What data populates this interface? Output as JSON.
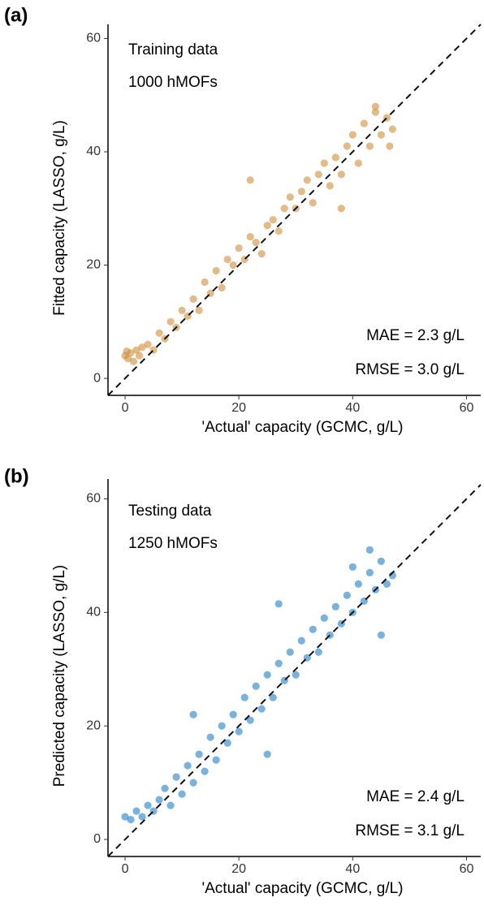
{
  "chart_data": [
    {
      "type": "scatter",
      "panel_label": "(a)",
      "x_label": "'Actual' capacity (GCMC, g/L)",
      "y_label": "Fitted capacity (LASSO, g/L)",
      "xlim": [
        -3,
        62.5
      ],
      "ylim": [
        -3,
        62.5
      ],
      "xticks": [
        0,
        20,
        40,
        60
      ],
      "yticks": [
        0,
        20,
        40,
        60
      ],
      "identity_line": true,
      "series": [
        {
          "name": "Training data",
          "color": "#cf8d3a",
          "x": [
            0,
            0.5,
            1,
            1.5,
            2,
            0.3,
            2.5,
            3,
            4,
            5,
            6,
            7,
            8,
            9,
            10,
            11,
            12,
            13,
            14,
            15,
            16,
            17,
            18,
            19,
            20,
            21,
            22,
            23,
            24,
            25,
            26,
            27,
            28,
            29,
            30,
            31,
            32,
            33,
            34,
            35,
            36,
            37,
            38,
            39,
            40,
            41,
            42,
            43,
            44,
            45,
            46,
            47,
            46.5,
            22,
            38,
            44
          ],
          "values": [
            4,
            3.5,
            4.5,
            3,
            5,
            4.8,
            4,
            5.5,
            6,
            5,
            8,
            7,
            10,
            9,
            12,
            11,
            14,
            12,
            17,
            15,
            19,
            16,
            21,
            20,
            23,
            21,
            25,
            24,
            22,
            27,
            28,
            26,
            30,
            32,
            30,
            33,
            35,
            31,
            36,
            38,
            34,
            39,
            36,
            41,
            43,
            38,
            45,
            41,
            47,
            43,
            46,
            44,
            41,
            35,
            30,
            48
          ]
        }
      ],
      "annotations": [
        "1000 hMOFs",
        "MAE = 2.3 g/L",
        "RMSE = 3.0 g/L"
      ]
    },
    {
      "type": "scatter",
      "panel_label": "(b)",
      "x_label": "'Actual' capacity (GCMC, g/L)",
      "y_label": "Predicted capacity (LASSO, g/L)",
      "xlim": [
        -3,
        62.5
      ],
      "ylim": [
        -3,
        63.5
      ],
      "xticks": [
        0,
        20,
        40,
        60
      ],
      "yticks": [
        0,
        20,
        40,
        60
      ],
      "identity_line": true,
      "series": [
        {
          "name": "Testing data",
          "color": "#1f7fc4",
          "x": [
            0,
            1,
            2,
            3,
            4,
            5,
            6,
            7,
            8,
            9,
            10,
            11,
            12,
            13,
            14,
            15,
            16,
            17,
            18,
            19,
            20,
            21,
            22,
            23,
            24,
            25,
            26,
            27,
            28,
            29,
            30,
            31,
            32,
            33,
            34,
            35,
            36,
            37,
            38,
            39,
            40,
            41,
            42,
            43,
            44,
            45,
            46,
            47,
            45,
            27,
            12,
            25,
            40,
            43
          ],
          "values": [
            4,
            3.5,
            5,
            4,
            6,
            5,
            7,
            9,
            6,
            11,
            8,
            13,
            10,
            15,
            12,
            18,
            14,
            20,
            17,
            22,
            19,
            25,
            21,
            27,
            23,
            29,
            25,
            31,
            28,
            33,
            29,
            35,
            32,
            37,
            33,
            39,
            36,
            41,
            38,
            43,
            40,
            45,
            42,
            47,
            44,
            49,
            45,
            46.5,
            36,
            41.5,
            22,
            15,
            48,
            51
          ]
        }
      ],
      "annotations": [
        "1250 hMOFs",
        "MAE = 2.4 g/L",
        "RMSE = 3.1 g/L"
      ]
    }
  ]
}
